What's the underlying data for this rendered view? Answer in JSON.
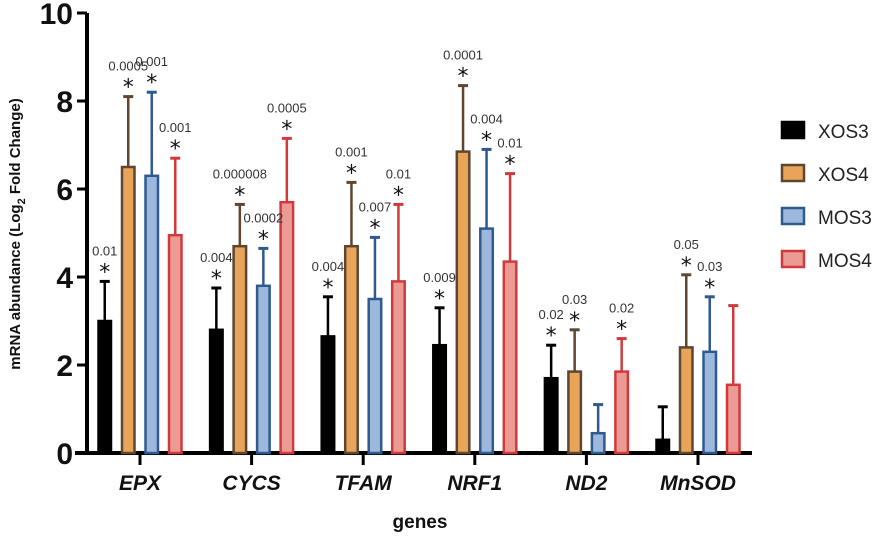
{
  "chart_data": {
    "type": "bar",
    "title": "",
    "xlabel": "genes",
    "ylabel": "mRNA abundance (Log2 Fold Change)",
    "ylabel_parts": {
      "pre": "mRNA abundance (Log",
      "sub": "2",
      "post": " Fold Change)"
    },
    "ylim": [
      0,
      10
    ],
    "yticks": [
      0,
      2,
      4,
      6,
      8,
      10
    ],
    "grid": false,
    "legend_position": "right",
    "categories": [
      "EPX",
      "CYCS",
      "TFAM",
      "NRF1",
      "ND2",
      "MnSOD"
    ],
    "series": [
      {
        "name": "XOS3",
        "fill": "#000000",
        "stroke": "#000000",
        "values": [
          3.0,
          2.8,
          2.65,
          2.45,
          1.7,
          0.3
        ],
        "error_upper": [
          3.9,
          3.75,
          3.55,
          3.3,
          2.45,
          1.05
        ],
        "significance": [
          "*",
          "*",
          "*",
          "*",
          "*",
          ""
        ],
        "p_values": [
          "0.01",
          "0.004",
          "0.004",
          "0.009",
          "0.02",
          ""
        ]
      },
      {
        "name": "XOS4",
        "fill": "#E8A55A",
        "stroke": "#5E4630",
        "values": [
          6.5,
          4.7,
          4.7,
          6.85,
          1.85,
          2.4
        ],
        "error_upper": [
          8.1,
          5.65,
          6.15,
          8.35,
          2.8,
          4.05
        ],
        "significance": [
          "*",
          "*",
          "*",
          "*",
          "*",
          "*"
        ],
        "p_values": [
          "0.0005",
          "0.000008",
          "0.001",
          "0.0001",
          "0.03",
          "0.05"
        ]
      },
      {
        "name": "MOS3",
        "fill": "#9DB8DD",
        "stroke": "#2E5A8E",
        "values": [
          6.3,
          3.8,
          3.5,
          5.1,
          0.45,
          2.3
        ],
        "error_upper": [
          8.2,
          4.65,
          4.9,
          6.9,
          1.1,
          3.55
        ],
        "significance": [
          "*",
          "*",
          "*",
          "*",
          "",
          "*"
        ],
        "p_values": [
          "0.001",
          "0.0002",
          "0.007",
          "0.004",
          "",
          "0.03"
        ]
      },
      {
        "name": "MOS4",
        "fill": "#EC9A94",
        "stroke": "#D03A3C",
        "values": [
          4.95,
          5.7,
          3.9,
          4.35,
          1.85,
          1.55
        ],
        "error_upper": [
          6.7,
          7.15,
          5.65,
          6.35,
          2.6,
          3.35
        ],
        "significance": [
          "*",
          "*",
          "*",
          "*",
          "*",
          ""
        ],
        "p_values": [
          "0.001",
          "0.0005",
          "0.01",
          "0.01",
          "0.02",
          ""
        ]
      }
    ]
  }
}
